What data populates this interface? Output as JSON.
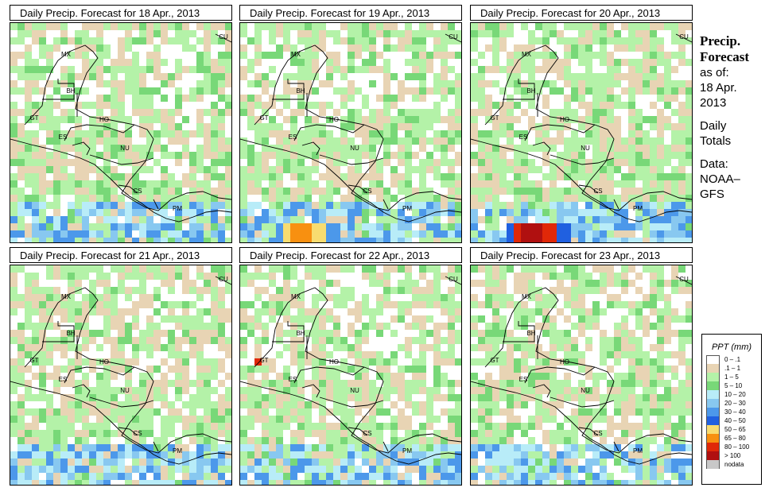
{
  "panels": [
    {
      "title": "Daily Precip. Forecast for  18 Apr., 2013",
      "variant": 0
    },
    {
      "title": "Daily Precip. Forecast for  19 Apr., 2013",
      "variant": 1
    },
    {
      "title": "Daily Precip. Forecast for  20 Apr., 2013",
      "variant": 2
    },
    {
      "title": "Daily Precip. Forecast for  21 Apr., 2013",
      "variant": 3
    },
    {
      "title": "Daily Precip. Forecast for  22 Apr., 2013",
      "variant": 4
    },
    {
      "title": "Daily Precip. Forecast for  23 Apr., 2013",
      "variant": 5
    }
  ],
  "country_labels": [
    "MX",
    "CU",
    "BH",
    "GT",
    "HO",
    "ES",
    "NU",
    "CS",
    "PM"
  ],
  "side_panel": {
    "title_line1": "Precip.",
    "title_line2": "Forecast",
    "asof_line1": "as of:",
    "asof_line2": "18 Apr.",
    "asof_line3": "2013",
    "totals_line1": "Daily",
    "totals_line2": "Totals",
    "data_line1": "Data:",
    "data_line2": "NOAA–",
    "data_line3": "GFS"
  },
  "legend": {
    "title": "PPT (mm)",
    "items": [
      {
        "label": "0 – .1",
        "color": "#ffffff"
      },
      {
        "label": ".1 – 1",
        "color": "#e8d4b4"
      },
      {
        "label": "1 – 5",
        "color": "#b4f2a8"
      },
      {
        "label": "5 – 10",
        "color": "#78d878"
      },
      {
        "label": "10 – 20",
        "color": "#b8ecf8"
      },
      {
        "label": "20 – 30",
        "color": "#88c8f0"
      },
      {
        "label": "30 – 40",
        "color": "#4c98ea"
      },
      {
        "label": "40 – 50",
        "color": "#2060e0"
      },
      {
        "label": "50 – 65",
        "color": "#f8dc70"
      },
      {
        "label": "65 – 80",
        "color": "#f89010"
      },
      {
        "label": "80 – 100",
        "color": "#e02808"
      },
      {
        "label": "> 100",
        "color": "#b01010"
      },
      {
        "label": "nodata",
        "color": "#c8c8c8"
      }
    ]
  }
}
